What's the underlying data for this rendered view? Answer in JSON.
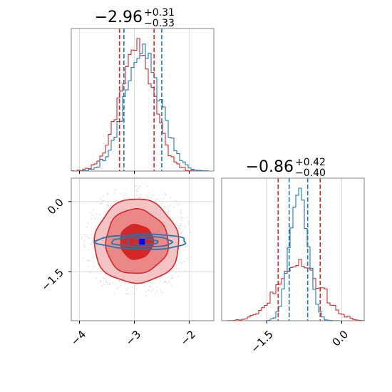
{
  "colors": {
    "red": "#d62728",
    "blue": "#1f77b4",
    "grid": "#d9d9d9",
    "frame": "#808080",
    "marker": "#0000ff"
  },
  "chart_data": [
    {
      "type": "histogram",
      "panel": "top-left",
      "title_value": "−2.96",
      "title_sup": "+0.31",
      "title_sub": "−0.33",
      "xlim": [
        -4.15,
        -1.55
      ],
      "xticks": [
        -4,
        -3,
        -2
      ],
      "quantiles": {
        "red": [
          -3.27,
          -2.64
        ],
        "blue": [
          -3.19,
          -2.5
        ]
      },
      "series": [
        {
          "name": "",
          "color": "red",
          "center": -2.96,
          "sigma": 0.31
        },
        {
          "name": "",
          "color": "blue",
          "center": -2.85,
          "sigma": 0.32
        }
      ]
    },
    {
      "type": "histogram",
      "panel": "bottom-right",
      "title_value": "−0.86",
      "title_sup": "+0.42",
      "title_sub": "−0.40",
      "xlim": [
        -2.4,
        0.45
      ],
      "xticks": [
        -1.5,
        0.0
      ],
      "xtick_labels": [
        "−1.5",
        "0.0"
      ],
      "quantiles": {
        "red": [
          -1.27,
          -0.43
        ],
        "blue": [
          -1.05,
          -0.68
        ]
      },
      "series": [
        {
          "name": "",
          "color": "red",
          "center": -0.86,
          "sigma": 0.41
        },
        {
          "name": "",
          "color": "blue",
          "center": -0.86,
          "sigma": 0.18
        }
      ]
    },
    {
      "type": "contour",
      "panel": "bottom-left",
      "xlim": [
        -4.15,
        -1.55
      ],
      "ylim": [
        -2.55,
        0.5
      ],
      "xticks": [
        -4,
        -3,
        -2
      ],
      "xtick_labels": [
        "−4",
        "−3",
        "−2"
      ],
      "yticks": [
        0.0,
        -1.5
      ],
      "ytick_labels": [
        "0.0",
        "−1.5"
      ],
      "red_center": [
        -2.96,
        -0.86
      ],
      "red_radii": [
        [
          0.3,
          0.37
        ],
        [
          0.57,
          0.69
        ],
        [
          0.77,
          0.9
        ]
      ],
      "blue_center": [
        -2.85,
        -0.86
      ],
      "blue_radii": [
        [
          0.28,
          0.06
        ],
        [
          0.55,
          0.11
        ],
        [
          0.82,
          0.16
        ]
      ],
      "markers": [
        {
          "color": "red",
          "x": -3.04,
          "y": -0.86
        },
        {
          "color": "blue",
          "x": -2.86,
          "y": -0.86
        }
      ]
    }
  ]
}
